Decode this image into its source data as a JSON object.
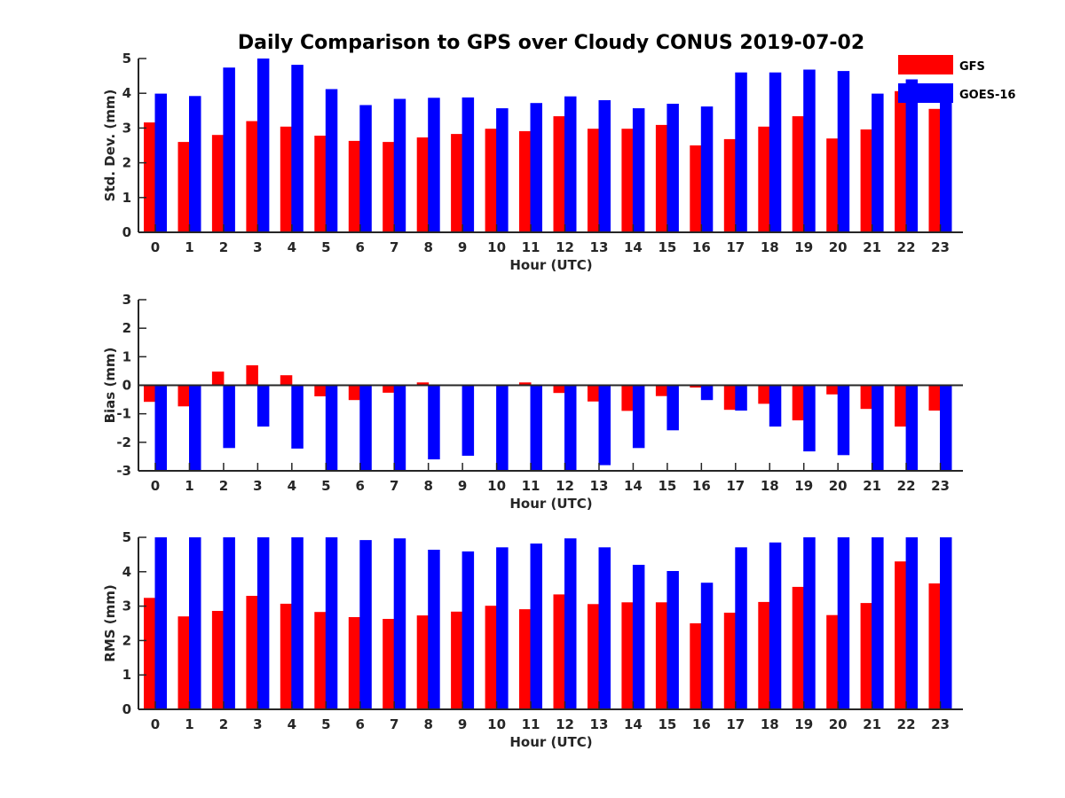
{
  "chart_data": {
    "type": "bar",
    "title": "Daily Comparison to GPS over Cloudy CONUS 2019-07-02",
    "legend": {
      "placement": "top-right",
      "entries": [
        "GFS",
        "GOES-16"
      ]
    },
    "colors": {
      "GFS": "#ff0000",
      "GOES-16": "#0000ff",
      "axis": "#262626"
    },
    "categories": [
      "0",
      "1",
      "2",
      "3",
      "4",
      "5",
      "6",
      "7",
      "8",
      "9",
      "10",
      "11",
      "12",
      "13",
      "14",
      "15",
      "16",
      "17",
      "18",
      "19",
      "20",
      "21",
      "22",
      "23"
    ],
    "panels": [
      {
        "name": "std-dev",
        "ylabel": "Std. Dev. (mm)",
        "xlabel": "Hour (UTC)",
        "ylim": [
          0,
          5
        ],
        "yticks": [
          "0",
          "1",
          "2",
          "3",
          "4",
          "5"
        ],
        "series": [
          {
            "name": "GFS",
            "values": [
              3.16,
              2.6,
              2.8,
              3.2,
              3.04,
              2.78,
              2.63,
              2.6,
              2.73,
              2.83,
              2.98,
              2.91,
              3.34,
              2.98,
              2.98,
              3.09,
              2.5,
              2.68,
              3.04,
              3.34,
              2.7,
              2.96,
              4.06,
              3.55
            ]
          },
          {
            "name": "GOES-16",
            "values": [
              3.99,
              3.92,
              4.74,
              5.0,
              4.82,
              4.12,
              3.66,
              3.84,
              3.87,
              3.88,
              3.57,
              3.72,
              3.91,
              3.8,
              3.57,
              3.7,
              3.62,
              4.6,
              4.6,
              4.68,
              4.64,
              3.99,
              4.4,
              3.8
            ]
          }
        ]
      },
      {
        "name": "bias",
        "ylabel": "Bias (mm)",
        "xlabel": "Hour (UTC)",
        "ylim": [
          -3,
          3
        ],
        "yticks": [
          "-3",
          "-2",
          "-1",
          "0",
          "1",
          "2",
          "3"
        ],
        "series": [
          {
            "name": "GFS",
            "values": [
              -0.58,
              -0.74,
              0.48,
              0.7,
              0.35,
              -0.39,
              -0.52,
              -0.26,
              0.1,
              0.0,
              0.0,
              0.1,
              -0.27,
              -0.57,
              -0.9,
              -0.38,
              -0.08,
              -0.86,
              -0.65,
              -1.23,
              -0.32,
              -0.83,
              -1.45,
              -0.89
            ]
          },
          {
            "name": "GOES-16",
            "values": [
              -3.0,
              -3.0,
              -2.2,
              -1.45,
              -2.22,
              -3.0,
              -3.0,
              -3.0,
              -2.6,
              -2.47,
              -3.0,
              -3.0,
              -3.0,
              -2.8,
              -2.2,
              -1.58,
              -0.52,
              -0.89,
              -1.45,
              -2.32,
              -2.45,
              -3.0,
              -3.0,
              -3.0
            ]
          }
        ]
      },
      {
        "name": "rms",
        "ylabel": "RMS (mm)",
        "xlabel": "Hour (UTC)",
        "ylim": [
          0,
          5
        ],
        "yticks": [
          "0",
          "1",
          "2",
          "3",
          "4",
          "5"
        ],
        "series": [
          {
            "name": "GFS",
            "values": [
              3.24,
              2.7,
              2.86,
              3.3,
              3.07,
              2.83,
              2.68,
              2.63,
              2.73,
              2.84,
              3.01,
              2.91,
              3.34,
              3.06,
              3.11,
              3.11,
              2.5,
              2.81,
              3.12,
              3.56,
              2.74,
              3.09,
              4.3,
              3.66
            ]
          },
          {
            "name": "GOES-16",
            "values": [
              5.0,
              5.0,
              5.0,
              5.0,
              5.0,
              5.0,
              4.92,
              4.97,
              4.64,
              4.59,
              4.71,
              4.82,
              4.97,
              4.71,
              4.2,
              4.02,
              3.68,
              4.71,
              4.85,
              5.0,
              5.0,
              5.0,
              5.0,
              5.0
            ]
          }
        ]
      }
    ]
  }
}
